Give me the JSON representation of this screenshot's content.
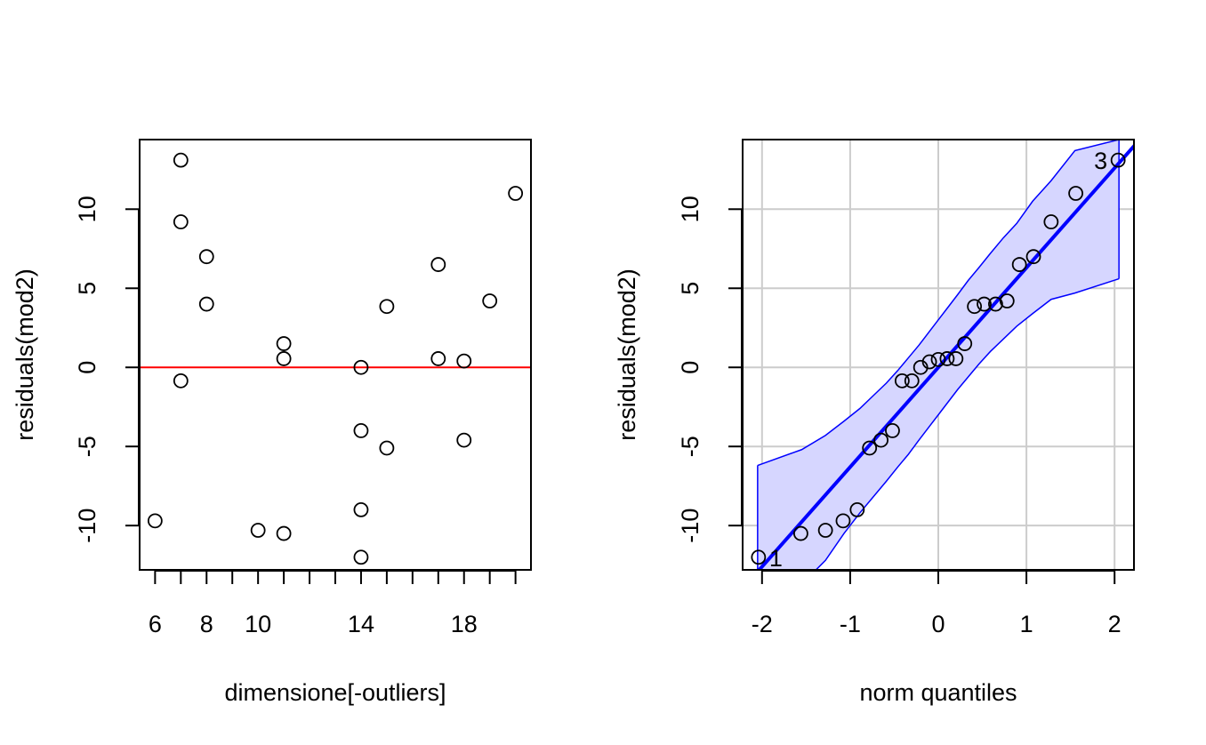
{
  "chart_data": [
    {
      "type": "scatter",
      "xlabel": "dimensione[-outliers]",
      "ylabel": "residuals(mod2)",
      "xlim": [
        5.4,
        20.6
      ],
      "ylim": [
        -12.8,
        14.4
      ],
      "x_ticks": [
        6,
        7,
        8,
        9,
        10,
        11,
        12,
        13,
        14,
        15,
        16,
        17,
        18,
        19,
        20
      ],
      "x_tick_labels": [
        "6",
        "",
        "8",
        "",
        "10",
        "",
        "",
        "",
        "14",
        "",
        "",
        "",
        "18",
        "",
        ""
      ],
      "y_ticks": [
        -10,
        -5,
        0,
        5,
        10
      ],
      "y_tick_labels": [
        "-10",
        "-5",
        "0",
        "5",
        "10"
      ],
      "grid": false,
      "reference_line": {
        "y": 0,
        "color": "#ff0000"
      },
      "point_style": "open-circle",
      "points": [
        {
          "x": 6,
          "y": -9.7
        },
        {
          "x": 7,
          "y": 13.1
        },
        {
          "x": 7,
          "y": 9.2
        },
        {
          "x": 7,
          "y": -0.85
        },
        {
          "x": 8,
          "y": 7.0
        },
        {
          "x": 8,
          "y": 4.0
        },
        {
          "x": 10,
          "y": -10.3
        },
        {
          "x": 11,
          "y": 1.5
        },
        {
          "x": 11,
          "y": 0.55
        },
        {
          "x": 11,
          "y": -10.5
        },
        {
          "x": 14,
          "y": 0.0
        },
        {
          "x": 14,
          "y": -4.0
        },
        {
          "x": 14,
          "y": -9.0
        },
        {
          "x": 14,
          "y": -12.0
        },
        {
          "x": 15,
          "y": 3.85
        },
        {
          "x": 15,
          "y": -5.1
        },
        {
          "x": 17,
          "y": 6.5
        },
        {
          "x": 17,
          "y": 0.55
        },
        {
          "x": 18,
          "y": 0.4
        },
        {
          "x": 18,
          "y": -4.6
        },
        {
          "x": 19,
          "y": 4.2
        },
        {
          "x": 20,
          "y": 11.0
        }
      ]
    },
    {
      "type": "scatter",
      "subtype": "qq-plot",
      "xlabel": "norm quantiles",
      "ylabel": "residuals(mod2)",
      "xlim": [
        -2.22,
        2.22
      ],
      "ylim": [
        -12.8,
        14.4
      ],
      "x_ticks": [
        -2,
        -1,
        0,
        1,
        2
      ],
      "x_tick_labels": [
        "-2",
        "-1",
        "0",
        "1",
        "2"
      ],
      "y_ticks": [
        -10,
        -5,
        0,
        5,
        10
      ],
      "y_tick_labels": [
        "-10",
        "-5",
        "0",
        "5",
        "10"
      ],
      "grid": true,
      "point_style": "open-circle",
      "reference_line": {
        "intercept": 0.0,
        "slope": 6.3,
        "color": "#0000ff"
      },
      "envelope_color": "#0000ff",
      "envelope_fill": "#d6d6ff",
      "envelope": {
        "x": [
          -2.05,
          -1.55,
          -1.28,
          -1.07,
          -0.89,
          -0.74,
          -0.59,
          -0.46,
          -0.34,
          -0.22,
          -0.11,
          0.0,
          0.11,
          0.22,
          0.34,
          0.46,
          0.59,
          0.74,
          0.89,
          1.07,
          1.28,
          1.55,
          2.05
        ],
        "upper": [
          -6.2,
          -5.2,
          -4.3,
          -3.4,
          -2.6,
          -1.8,
          -1.0,
          -0.2,
          0.6,
          1.4,
          2.2,
          3.0,
          3.8,
          4.6,
          5.5,
          6.3,
          7.2,
          8.2,
          9.1,
          10.5,
          11.8,
          13.7,
          14.4
        ],
        "lower": [
          -14.4,
          -13.7,
          -12.2,
          -10.5,
          -9.2,
          -8.2,
          -7.2,
          -6.3,
          -5.5,
          -4.6,
          -3.8,
          -3.0,
          -2.2,
          -1.4,
          -0.6,
          0.2,
          1.0,
          1.8,
          2.6,
          3.4,
          4.3,
          4.7,
          5.6
        ]
      },
      "points": [
        {
          "x": -2.04,
          "y": -12.0
        },
        {
          "x": -1.56,
          "y": -10.5
        },
        {
          "x": -1.28,
          "y": -10.3
        },
        {
          "x": -1.08,
          "y": -9.7
        },
        {
          "x": -0.92,
          "y": -9.0
        },
        {
          "x": -0.78,
          "y": -5.1
        },
        {
          "x": -0.65,
          "y": -4.6
        },
        {
          "x": -0.52,
          "y": -4.0
        },
        {
          "x": -0.41,
          "y": -0.85
        },
        {
          "x": -0.3,
          "y": -0.85
        },
        {
          "x": -0.2,
          "y": 0.0
        },
        {
          "x": -0.1,
          "y": 0.35
        },
        {
          "x": 0.0,
          "y": 0.5
        },
        {
          "x": 0.1,
          "y": 0.55
        },
        {
          "x": 0.2,
          "y": 0.55
        },
        {
          "x": 0.3,
          "y": 1.5
        },
        {
          "x": 0.41,
          "y": 3.85
        },
        {
          "x": 0.52,
          "y": 4.0
        },
        {
          "x": 0.65,
          "y": 4.0
        },
        {
          "x": 0.78,
          "y": 4.2
        },
        {
          "x": 0.92,
          "y": 6.5
        },
        {
          "x": 1.08,
          "y": 7.0
        },
        {
          "x": 1.28,
          "y": 9.2
        },
        {
          "x": 1.56,
          "y": 11.0
        },
        {
          "x": 2.04,
          "y": 13.1
        }
      ],
      "point_labels": [
        {
          "text": "1",
          "x": -2.04,
          "y": -12.0,
          "side": "right"
        },
        {
          "text": "3",
          "x": 2.04,
          "y": 13.1,
          "side": "left"
        }
      ]
    }
  ]
}
